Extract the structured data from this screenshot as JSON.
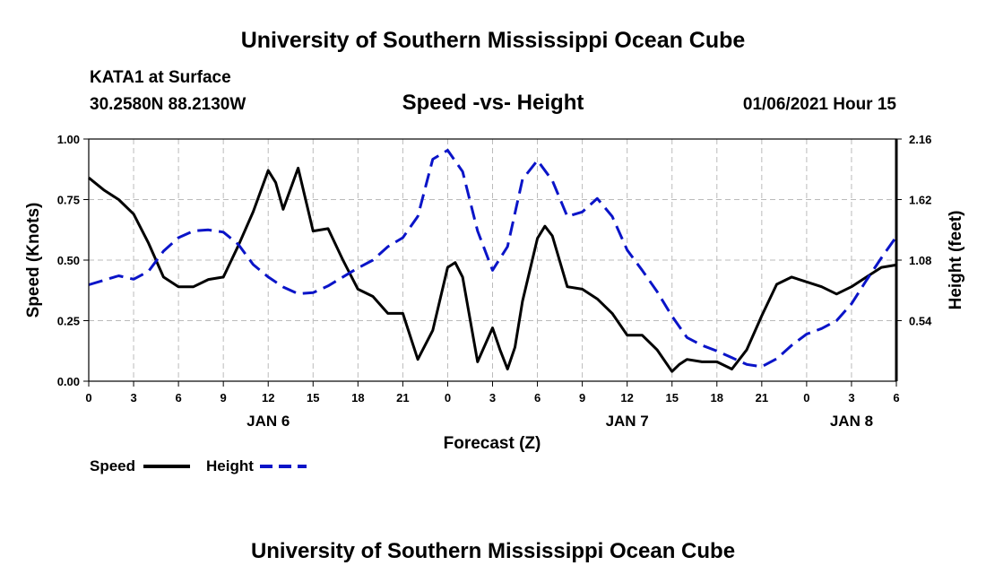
{
  "header": {
    "title": "University of Southern Mississippi Ocean Cube",
    "station": "KATA1 at Surface",
    "coords": "30.2580N 88.2130W",
    "chart_title": "Speed -vs- Height",
    "issued": "01/06/2021 Hour 15"
  },
  "footer": {
    "title": "University of Southern Mississippi Ocean Cube"
  },
  "colors": {
    "speed": "#000000",
    "height": "#0a14c8",
    "grid": "#bbbbbb"
  },
  "chart_data": {
    "type": "line",
    "title": "Speed -vs- Height",
    "xlabel": "Forecast (Z)",
    "ylabel": "Speed (Knots)",
    "y2label": "Height (feet)",
    "xlim": [
      0,
      54
    ],
    "ylim": [
      0,
      1.0
    ],
    "y2lim": [
      0,
      2.16
    ],
    "x_ticks": [
      0,
      3,
      6,
      9,
      12,
      15,
      18,
      21,
      24,
      27,
      30,
      33,
      36,
      39,
      42,
      45,
      48,
      51,
      54
    ],
    "x_tick_labels": [
      "0",
      "3",
      "6",
      "9",
      "12",
      "15",
      "18",
      "21",
      "0",
      "3",
      "6",
      "9",
      "12",
      "15",
      "18",
      "21",
      "0",
      "3",
      "6"
    ],
    "y_ticks": [
      0,
      0.25,
      0.5,
      0.75,
      1.0
    ],
    "y_tick_labels": [
      "0.00",
      "0.25",
      "0.50",
      "0.75",
      "1.00"
    ],
    "y2_ticks": [
      0.54,
      1.08,
      1.62,
      2.16
    ],
    "y2_tick_labels": [
      "0.54",
      "1.08",
      "1.62",
      "2.16"
    ],
    "date_labels": [
      {
        "x": 12,
        "label": "JAN 6"
      },
      {
        "x": 36,
        "label": "JAN 7"
      },
      {
        "x": 51,
        "label": "JAN 8"
      }
    ],
    "grid": true,
    "legend_position": "bottom-left",
    "series": [
      {
        "name": "Speed",
        "axis": "left",
        "style": "solid",
        "x": [
          0,
          1,
          2,
          3,
          4,
          5,
          6,
          7,
          8,
          9,
          10,
          11,
          12,
          12.5,
          13,
          14,
          15,
          16,
          17,
          18,
          19,
          20,
          21,
          22,
          23,
          24,
          24.5,
          25,
          26,
          27,
          27.5,
          28,
          28.5,
          29,
          30,
          30.5,
          31,
          32,
          33,
          34,
          35,
          36,
          37,
          38,
          39,
          39.5,
          40,
          41,
          42,
          43,
          44,
          45,
          46,
          47,
          48,
          49,
          50,
          51,
          52,
          53,
          54
        ],
        "values": [
          0.84,
          0.79,
          0.75,
          0.69,
          0.57,
          0.43,
          0.39,
          0.39,
          0.42,
          0.43,
          0.56,
          0.7,
          0.87,
          0.82,
          0.71,
          0.88,
          0.62,
          0.63,
          0.5,
          0.38,
          0.35,
          0.28,
          0.28,
          0.09,
          0.21,
          0.47,
          0.49,
          0.43,
          0.08,
          0.22,
          0.13,
          0.05,
          0.14,
          0.33,
          0.59,
          0.64,
          0.6,
          0.39,
          0.38,
          0.34,
          0.28,
          0.19,
          0.19,
          0.13,
          0.04,
          0.07,
          0.09,
          0.08,
          0.08,
          0.05,
          0.13,
          0.27,
          0.4,
          0.43,
          0.41,
          0.39,
          0.36,
          0.39,
          0.43,
          0.47,
          0.48
        ]
      },
      {
        "name": "Height",
        "axis": "right",
        "style": "dashed",
        "x": [
          0,
          1,
          2,
          3,
          4,
          5,
          6,
          7,
          8,
          9,
          10,
          11,
          12,
          13,
          14,
          15,
          16,
          17,
          18,
          19,
          20,
          21,
          22,
          23,
          24,
          25,
          26,
          27,
          28,
          29,
          30,
          31,
          32,
          33,
          34,
          35,
          36,
          37,
          38,
          39,
          40,
          41,
          42,
          43,
          44,
          45,
          46,
          47,
          48,
          49,
          50,
          51,
          52,
          53,
          54
        ],
        "values": [
          0.86,
          0.9,
          0.94,
          0.91,
          0.98,
          1.16,
          1.28,
          1.34,
          1.35,
          1.33,
          1.22,
          1.04,
          0.93,
          0.84,
          0.78,
          0.79,
          0.85,
          0.93,
          1.01,
          1.08,
          1.2,
          1.28,
          1.47,
          1.98,
          2.06,
          1.87,
          1.34,
          0.99,
          1.2,
          1.8,
          1.97,
          1.79,
          1.47,
          1.51,
          1.63,
          1.47,
          1.17,
          0.99,
          0.8,
          0.58,
          0.39,
          0.32,
          0.27,
          0.21,
          0.15,
          0.13,
          0.2,
          0.32,
          0.42,
          0.47,
          0.54,
          0.69,
          0.9,
          1.1,
          1.29
        ]
      }
    ]
  }
}
